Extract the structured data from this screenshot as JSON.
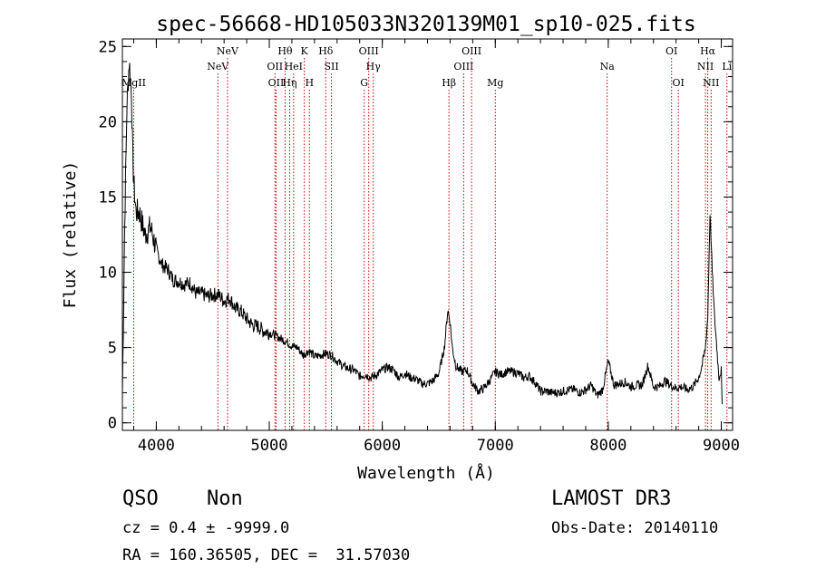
{
  "chart_data": {
    "type": "line",
    "title": "spec-56668-HD105033N320139M01_sp10-025.fits",
    "xlabel": "Wavelength (Å)",
    "ylabel": "Flux (relative)",
    "xlim": [
      3700,
      9100
    ],
    "ylim": [
      -0.5,
      25.5
    ],
    "x_ticks": [
      4000,
      5000,
      6000,
      7000,
      8000,
      9000
    ],
    "x_tick_labels": [
      "4000",
      "5000",
      "6000",
      "7000",
      "8000",
      "9000"
    ],
    "y_ticks": [
      0,
      5,
      10,
      15,
      20,
      25
    ],
    "y_tick_labels": [
      "0",
      "5",
      "10",
      "15",
      "20",
      "25"
    ],
    "series": [
      {
        "color": "#000000",
        "x": [
          3700,
          3720,
          3740,
          3760,
          3780,
          3790,
          3800,
          3820,
          3850,
          3900,
          3950,
          4000,
          4050,
          4100,
          4150,
          4200,
          4250,
          4300,
          4350,
          4400,
          4450,
          4500,
          4550,
          4600,
          4650,
          4700,
          4750,
          4800,
          4850,
          4900,
          4950,
          5000,
          5050,
          5100,
          5150,
          5200,
          5250,
          5300,
          5350,
          5400,
          5450,
          5500,
          5550,
          5600,
          5650,
          5700,
          5750,
          5800,
          5850,
          5900,
          5950,
          6000,
          6050,
          6100,
          6150,
          6200,
          6250,
          6300,
          6350,
          6400,
          6450,
          6500,
          6550,
          6580,
          6600,
          6620,
          6650,
          6700,
          6750,
          6800,
          6850,
          6900,
          6950,
          7000,
          7050,
          7100,
          7150,
          7200,
          7250,
          7300,
          7350,
          7400,
          7450,
          7500,
          7550,
          7600,
          7650,
          7700,
          7750,
          7800,
          7850,
          7900,
          7950,
          8000,
          8050,
          8100,
          8150,
          8200,
          8250,
          8300,
          8350,
          8400,
          8450,
          8500,
          8550,
          8600,
          8650,
          8700,
          8750,
          8800,
          8830,
          8860,
          8880,
          8900,
          8920,
          8940,
          8960,
          8980,
          9000,
          9010
        ],
        "y": [
          2,
          13,
          21,
          24,
          22,
          18,
          16,
          14,
          14,
          12.5,
          13,
          11.5,
          10.5,
          10.2,
          9.5,
          9.4,
          9.2,
          9.3,
          8.6,
          8.6,
          8.4,
          8.5,
          8.5,
          8.1,
          8.3,
          7.6,
          7.4,
          6.9,
          6.5,
          6.4,
          6.1,
          6.0,
          5.8,
          5.6,
          5.4,
          5.1,
          5.0,
          4.5,
          4.8,
          4.4,
          4.5,
          4.6,
          4.5,
          4.1,
          3.8,
          3.6,
          3.5,
          3.1,
          3.2,
          3.0,
          3.2,
          3.5,
          3.7,
          3.5,
          3.0,
          3.3,
          3.0,
          2.9,
          2.6,
          2.6,
          2.8,
          3.3,
          5.0,
          7.5,
          6.7,
          5.0,
          3.8,
          3.4,
          3.5,
          2.6,
          2.1,
          2.3,
          2.8,
          3.4,
          3.2,
          3.4,
          3.4,
          3.3,
          3.0,
          3.1,
          2.7,
          2.1,
          2.1,
          2.0,
          2.0,
          2.1,
          2.2,
          2.2,
          2.0,
          2.2,
          2.5,
          1.8,
          2.2,
          4.1,
          2.5,
          2.6,
          2.7,
          2.4,
          2.5,
          2.5,
          3.8,
          2.4,
          2.4,
          2.8,
          2.5,
          2.3,
          2.4,
          2.2,
          2.4,
          3.0,
          3.8,
          5.0,
          7.0,
          14.0,
          10.0,
          7.0,
          5.0,
          3.0,
          3.5,
          0.3
        ]
      }
    ],
    "line_markers": [
      {
        "label": "MgII",
        "x": 3800,
        "row": 2
      },
      {
        "label": "NeV",
        "x": 4545,
        "row": 1
      },
      {
        "label": "NeV",
        "x": 4630,
        "row": 0
      },
      {
        "label": "OII",
        "x": 5050,
        "row": 1
      },
      {
        "label": "OII",
        "x": 5060,
        "row": 2
      },
      {
        "label": "Hθ",
        "x": 5140,
        "row": 0
      },
      {
        "label": "HeI",
        "x": 5215,
        "row": 1
      },
      {
        "label": "Hη",
        "x": 5180,
        "row": 2
      },
      {
        "label": "K",
        "x": 5310,
        "row": 0
      },
      {
        "label": "H",
        "x": 5355,
        "row": 2
      },
      {
        "label": "Hδ",
        "x": 5500,
        "row": 0
      },
      {
        "label": "SII",
        "x": 5550,
        "row": 1
      },
      {
        "label": "OIII",
        "x": 5880,
        "row": 0
      },
      {
        "label": "Hγ",
        "x": 5920,
        "row": 1
      },
      {
        "label": "G",
        "x": 5840,
        "row": 2
      },
      {
        "label": "Hβ",
        "x": 6590,
        "row": 2
      },
      {
        "label": "OIII",
        "x": 6720,
        "row": 1
      },
      {
        "label": "OIII",
        "x": 6790,
        "row": 0
      },
      {
        "label": "Mg",
        "x": 7000,
        "row": 2
      },
      {
        "label": "Na",
        "x": 7990,
        "row": 1
      },
      {
        "label": "OI",
        "x": 8560,
        "row": 0
      },
      {
        "label": "OI",
        "x": 8620,
        "row": 2
      },
      {
        "label": "Hα",
        "x": 8880,
        "row": 0
      },
      {
        "label": "NII",
        "x": 8860,
        "row": 1
      },
      {
        "label": "NII",
        "x": 8910,
        "row": 2
      },
      {
        "label": "Li",
        "x": 9050,
        "row": 1
      }
    ],
    "colors": {
      "spectrum": "#000000",
      "markers": "#cc0000"
    }
  },
  "info": {
    "class": "QSO",
    "subclass": "Non",
    "survey": "LAMOST DR3",
    "cz": "cz = 0.4 ± -9999.0",
    "obs_date": "Obs-Date: 20140110",
    "coords": "RA = 160.36505, DEC =  31.57030"
  }
}
